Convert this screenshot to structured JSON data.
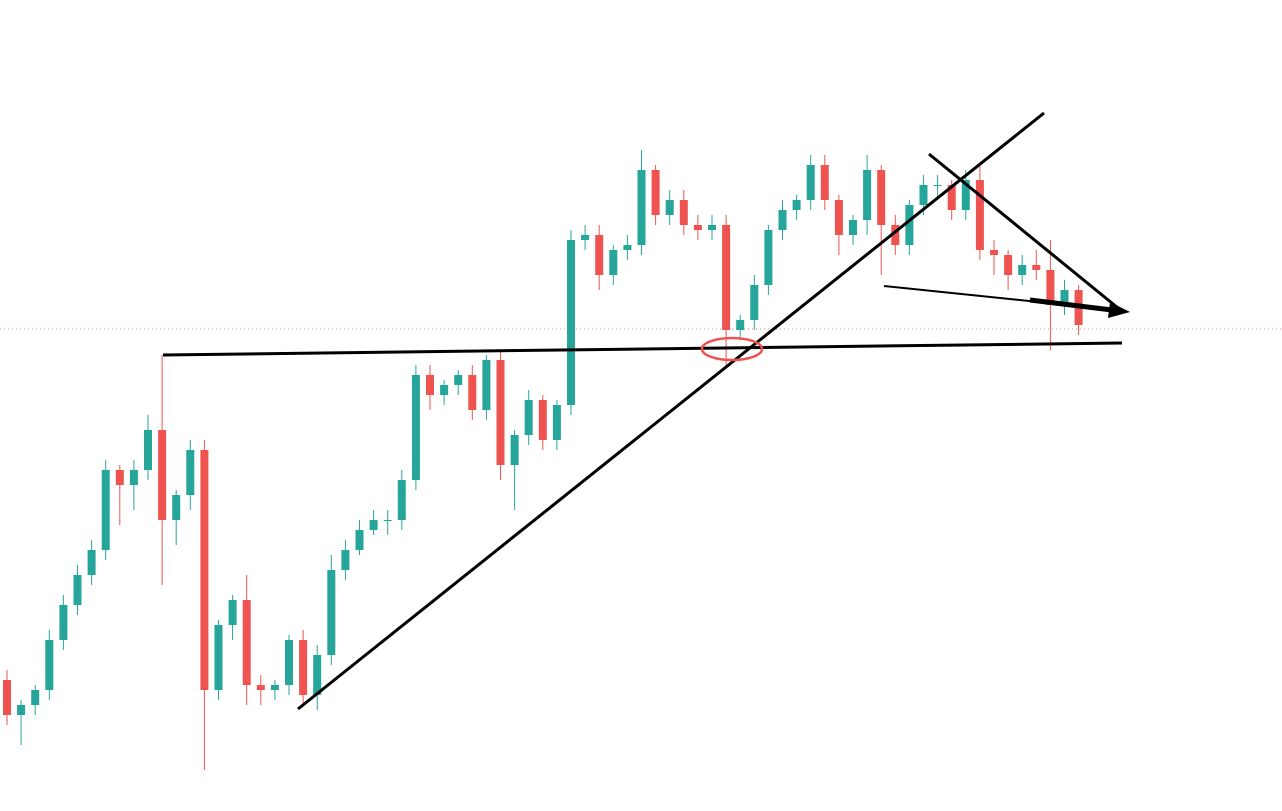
{
  "chart_data": {
    "type": "candlestick",
    "ylim": [
      0,
      811
    ],
    "up_color": "#26a69a",
    "down_color": "#ef5350",
    "open": [
      131,
      96,
      106,
      121,
      171,
      206,
      236,
      261,
      341,
      326,
      341,
      381,
      291,
      316,
      361,
      121,
      186,
      211,
      126,
      121,
      126,
      171,
      116,
      156,
      241,
      261,
      281,
      291,
      291,
      331,
      436,
      416,
      426,
      436,
      401,
      451,
      346,
      376,
      411,
      371,
      406,
      571,
      576,
      536,
      561,
      566,
      641,
      596,
      611,
      586,
      581,
      586,
      481,
      491,
      526,
      581,
      601,
      611,
      646,
      611,
      576,
      591,
      641,
      586,
      566,
      606,
      626,
      626,
      601,
      631,
      561,
      556,
      536,
      546,
      541,
      506,
      521
    ],
    "high": [
      141,
      111,
      126,
      181,
      216,
      246,
      271,
      351,
      346,
      351,
      396,
      456,
      321,
      371,
      371,
      191,
      216,
      236,
      136,
      131,
      176,
      181,
      166,
      256,
      271,
      291,
      301,
      301,
      341,
      446,
      446,
      431,
      441,
      446,
      456,
      461,
      381,
      421,
      416,
      411,
      581,
      586,
      586,
      566,
      576,
      661,
      646,
      621,
      621,
      596,
      596,
      596,
      496,
      536,
      586,
      611,
      616,
      656,
      656,
      616,
      596,
      656,
      646,
      596,
      611,
      636,
      636,
      631,
      641,
      648,
      571,
      561,
      556,
      561,
      571,
      531,
      526
    ],
    "low": [
      86,
      66,
      96,
      111,
      161,
      196,
      226,
      251,
      286,
      301,
      331,
      226,
      266,
      301,
      41,
      111,
      171,
      106,
      106,
      111,
      116,
      106,
      101,
      146,
      231,
      256,
      276,
      276,
      281,
      321,
      401,
      406,
      416,
      391,
      391,
      331,
      301,
      366,
      361,
      361,
      396,
      561,
      521,
      526,
      551,
      556,
      586,
      586,
      576,
      571,
      571,
      446,
      471,
      481,
      516,
      571,
      591,
      601,
      601,
      556,
      566,
      576,
      536,
      556,
      556,
      596,
      611,
      591,
      591,
      551,
      536,
      521,
      526,
      531,
      461,
      496,
      476
    ],
    "close": [
      96,
      106,
      121,
      171,
      206,
      236,
      261,
      341,
      326,
      341,
      381,
      291,
      316,
      361,
      121,
      186,
      211,
      126,
      121,
      126,
      171,
      116,
      156,
      241,
      261,
      281,
      291,
      291,
      331,
      436,
      416,
      426,
      436,
      401,
      451,
      346,
      376,
      411,
      371,
      406,
      571,
      576,
      536,
      561,
      566,
      641,
      596,
      611,
      586,
      581,
      586,
      481,
      491,
      526,
      581,
      601,
      611,
      646,
      611,
      576,
      591,
      641,
      586,
      566,
      606,
      626,
      626,
      601,
      631,
      561,
      556,
      536,
      546,
      541,
      506,
      521,
      486
    ]
  }
}
